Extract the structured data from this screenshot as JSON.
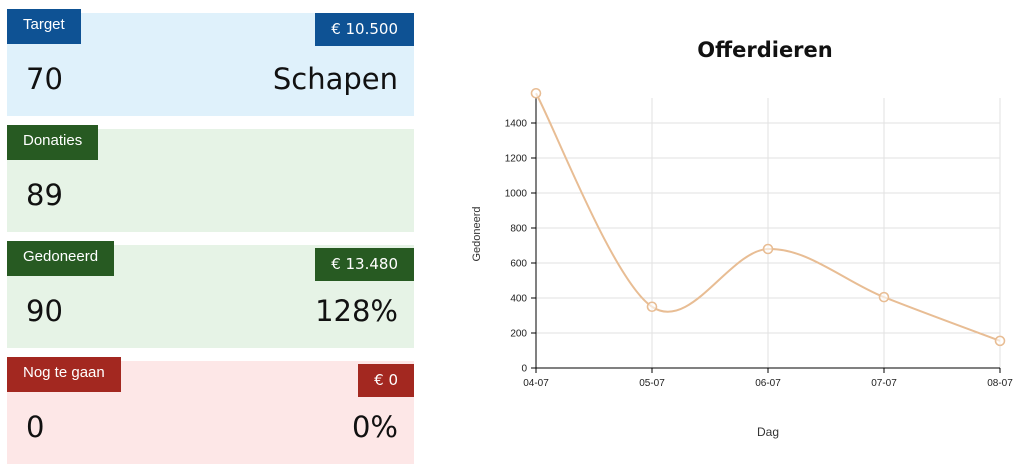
{
  "cards": {
    "target": {
      "label": "Target",
      "badge": "€ 10.500",
      "value": "70",
      "unit": "Schapen"
    },
    "donaties": {
      "label": "Donaties",
      "value": "89"
    },
    "gedoneerd": {
      "label": "Gedoneerd",
      "badge": "€ 13.480",
      "value": "90",
      "percent": "128%"
    },
    "nog_te_gaan": {
      "label": "Nog te gaan",
      "badge": "€ 0",
      "value": "0",
      "percent": "0%"
    }
  },
  "colors": {
    "series": "#e8bd94",
    "grid": "#e2e2e2",
    "blue": "#0e5294",
    "green": "#275a22",
    "red": "#a32820"
  },
  "chart_data": {
    "type": "line",
    "title": "Offerdieren",
    "xlabel": "Dag",
    "ylabel": "Gedoneerd",
    "categories": [
      "04-07",
      "05-07",
      "06-07",
      "07-07",
      "08-07"
    ],
    "series": [
      {
        "values": [
          1570,
          350,
          680,
          405,
          155
        ]
      }
    ],
    "ylim": [
      0,
      1400
    ],
    "yticks": [
      0,
      200,
      400,
      600,
      800,
      1000,
      1200,
      1400
    ],
    "grid": true,
    "legend": "none"
  }
}
